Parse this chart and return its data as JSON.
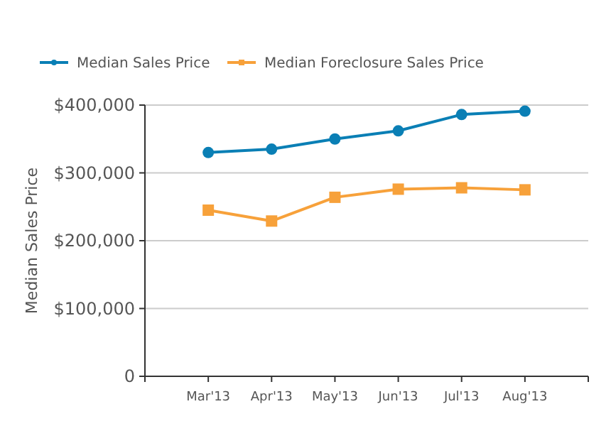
{
  "chart_data": {
    "type": "line",
    "ylabel": "Median Sales Price",
    "categories": [
      "Mar'13",
      "Apr'13",
      "May'13",
      "Jun'13",
      "Jul'13",
      "Aug'13"
    ],
    "series": [
      {
        "name": "Median Sales Price",
        "color": "#0a7fb5",
        "values": [
          330000,
          335000,
          350000,
          362000,
          386000,
          391000
        ],
        "marker": "circle"
      },
      {
        "name": "Median Foreclosure Sales Price",
        "color": "#f7a13a",
        "values": [
          245000,
          229000,
          264000,
          276000,
          278000,
          275000
        ],
        "marker": "square"
      }
    ],
    "ylim": [
      0,
      400000
    ],
    "yticks": [
      {
        "value": 0,
        "label": "0"
      },
      {
        "value": 100000,
        "label": "$100,000"
      },
      {
        "value": 200000,
        "label": "$200,000"
      },
      {
        "value": 300000,
        "label": "$300,000"
      },
      {
        "value": 400000,
        "label": "$400,000"
      }
    ],
    "grid": "y",
    "legend": "top",
    "line_style": "solid"
  }
}
